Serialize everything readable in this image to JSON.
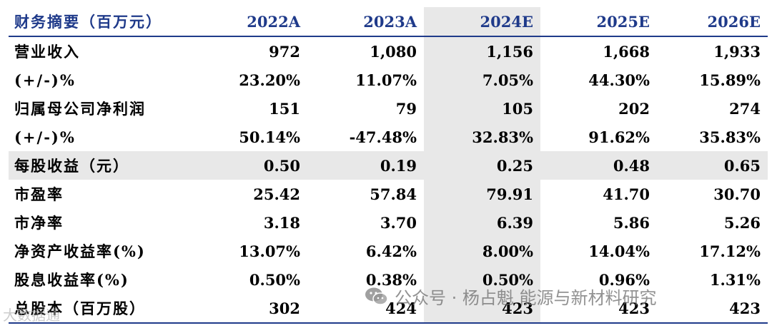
{
  "table": {
    "headers": [
      "财务摘要（百万元）",
      "2022A",
      "2023A",
      "2024E",
      "2025E",
      "2026E"
    ],
    "rows": [
      {
        "label": "营业收入",
        "values": [
          "972",
          "1,080",
          "1,156",
          "1,668",
          "1,933"
        ]
      },
      {
        "label": "(+/-)%",
        "values": [
          "23.20%",
          "11.07%",
          "7.05%",
          "44.30%",
          "15.89%"
        ]
      },
      {
        "label": "归属母公司净利润",
        "values": [
          "151",
          "79",
          "105",
          "202",
          "274"
        ]
      },
      {
        "label": "(+/-)%",
        "values": [
          "50.14%",
          "-47.48%",
          "32.83%",
          "91.62%",
          "35.83%"
        ]
      },
      {
        "label": "每股收益（元）",
        "values": [
          "0.50",
          "0.19",
          "0.25",
          "0.48",
          "0.65"
        ]
      },
      {
        "label": "市盈率",
        "values": [
          "25.42",
          "57.84",
          "79.91",
          "41.70",
          "30.70"
        ]
      },
      {
        "label": "市净率",
        "values": [
          "3.18",
          "3.70",
          "6.39",
          "5.86",
          "5.26"
        ]
      },
      {
        "label": "净资产收益率(%)",
        "values": [
          "13.07%",
          "6.42%",
          "8.00%",
          "14.04%",
          "17.12%"
        ]
      },
      {
        "label": "股息收益率(%)",
        "values": [
          "0.50%",
          "0.38%",
          "0.50%",
          "0.96%",
          "1.31%"
        ]
      },
      {
        "label": "总股本（百万股）",
        "values": [
          "302",
          "424",
          "423",
          "423",
          "423"
        ]
      }
    ]
  },
  "watermark": {
    "text": "公众号 · 杨占魁 能源与新材料研究",
    "icon": "wechat-icon"
  },
  "watermark2": {
    "text": "大数据通"
  },
  "colors": {
    "header_text": "#1f3a8a",
    "rule": "#1f3a8a",
    "highlight": "#e8e8e8"
  }
}
